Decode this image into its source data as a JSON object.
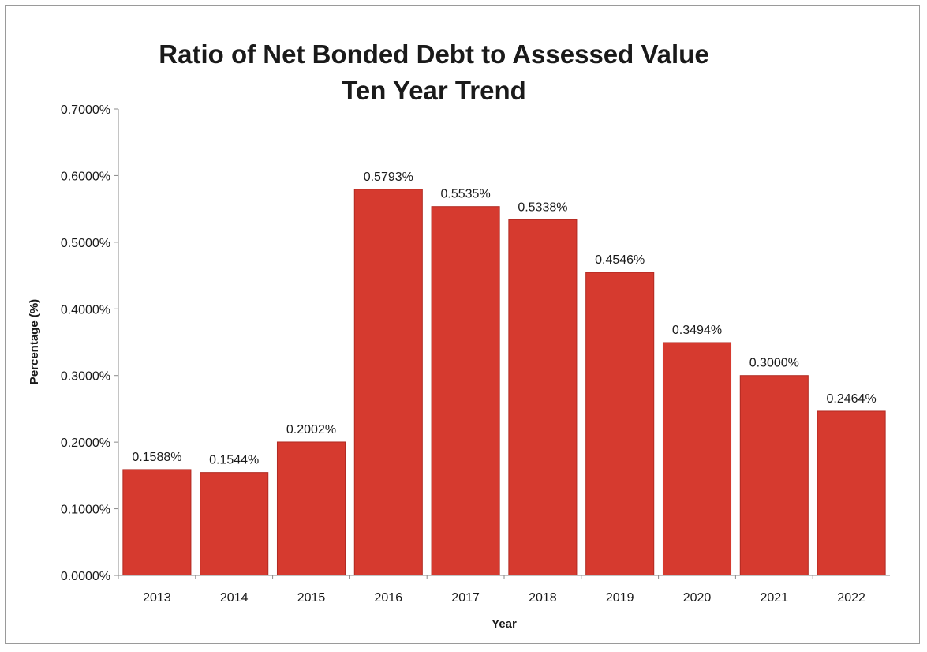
{
  "chart_data": {
    "type": "bar",
    "title": "Ratio of Net Bonded Debt to Assessed Value",
    "subtitle": "Ten Year Trend",
    "xlabel": "Year",
    "ylabel": "Percentage (%)",
    "categories": [
      "2013",
      "2014",
      "2015",
      "2016",
      "2017",
      "2018",
      "2019",
      "2020",
      "2021",
      "2022"
    ],
    "values": [
      0.1588,
      0.1544,
      0.2002,
      0.5793,
      0.5535,
      0.5338,
      0.4546,
      0.3494,
      0.3,
      0.2464
    ],
    "data_labels": [
      "0.1588%",
      "0.1544%",
      "0.2002%",
      "0.5793%",
      "0.5535%",
      "0.5338%",
      "0.4546%",
      "0.3494%",
      "0.3000%",
      "0.2464%"
    ],
    "ylim": [
      0,
      0.7
    ],
    "yticks": [
      0,
      0.1,
      0.2,
      0.3,
      0.4,
      0.5,
      0.6,
      0.7
    ],
    "ytick_labels": [
      "0.0000%",
      "0.1000%",
      "0.2000%",
      "0.3000%",
      "0.4000%",
      "0.5000%",
      "0.6000%",
      "0.7000%"
    ],
    "grid": false,
    "legend": "none",
    "bar_color": "#d63a2f",
    "bar_edge_color": "#b22a22"
  }
}
